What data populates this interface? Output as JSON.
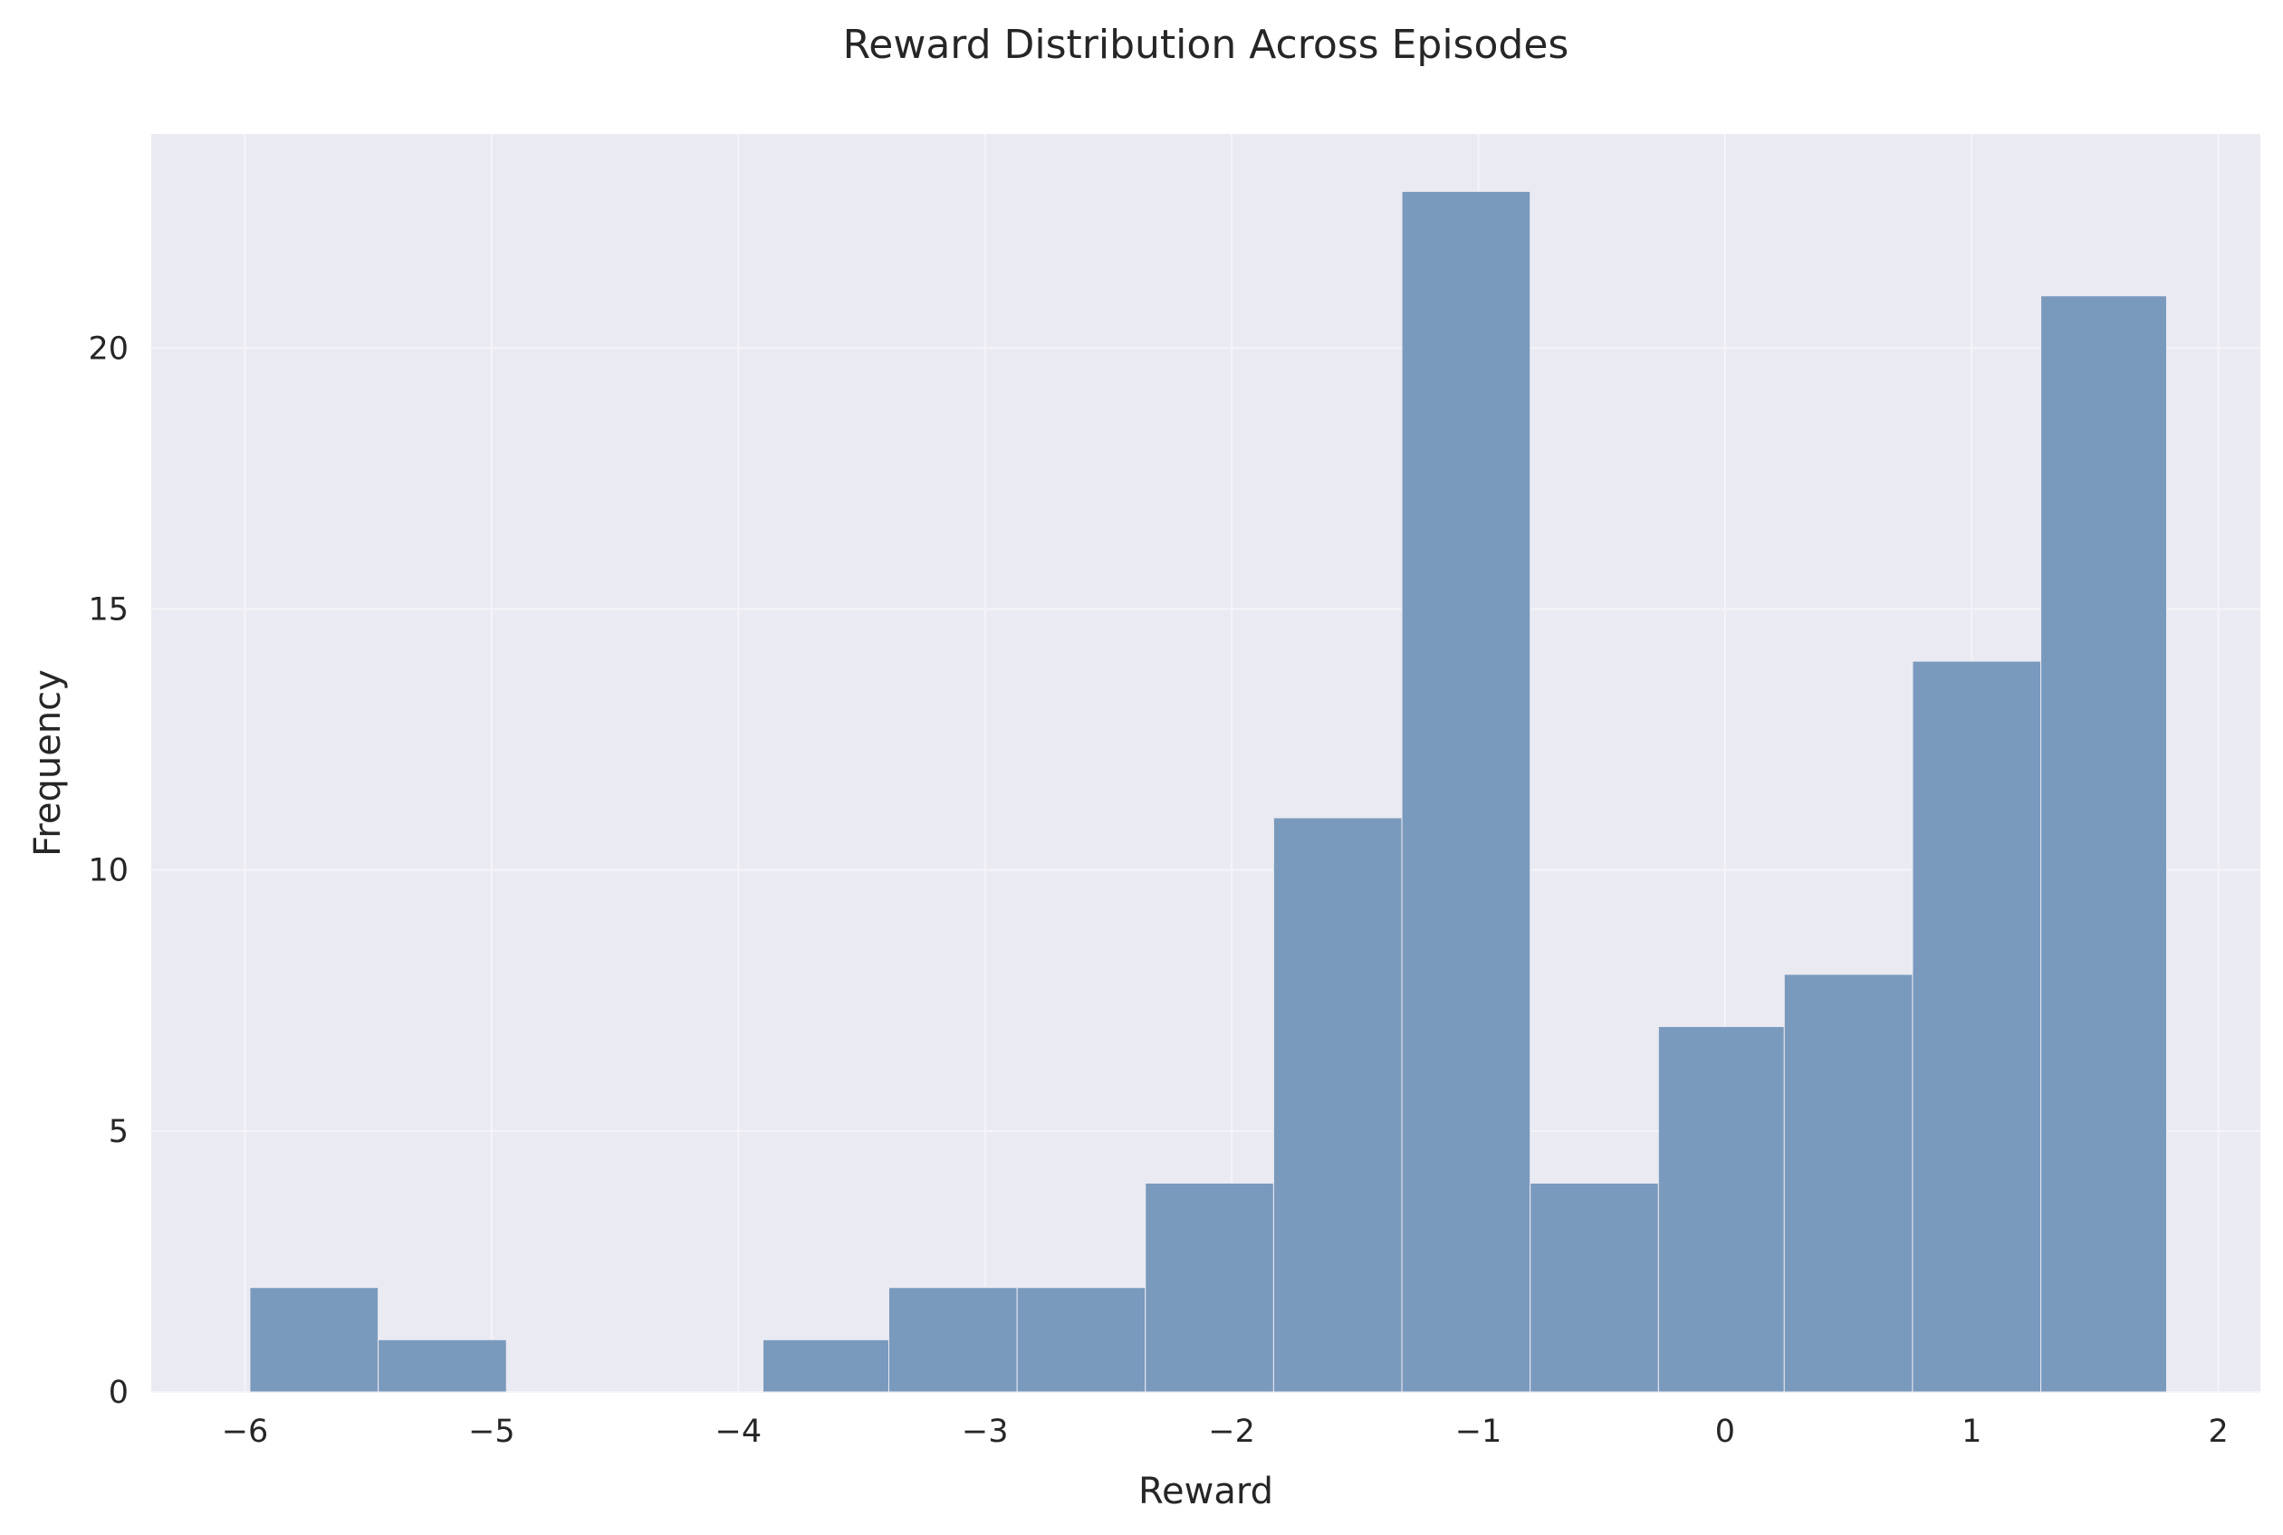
{
  "chart_data": {
    "type": "bar",
    "title": "Reward Distribution Across Episodes",
    "xlabel": "Reward",
    "ylabel": "Frequency",
    "xlim": [
      -6.38,
      2.17
    ],
    "ylim": [
      0,
      24.1
    ],
    "x_ticks": [
      {
        "value": -6,
        "label": "−6"
      },
      {
        "value": -5,
        "label": "−5"
      },
      {
        "value": -4,
        "label": "−4"
      },
      {
        "value": -3,
        "label": "−3"
      },
      {
        "value": -2,
        "label": "−2"
      },
      {
        "value": -1,
        "label": "−1"
      },
      {
        "value": 0,
        "label": "0"
      },
      {
        "value": 1,
        "label": "1"
      },
      {
        "value": 2,
        "label": "2"
      }
    ],
    "y_ticks": [
      {
        "value": 0,
        "label": "0"
      },
      {
        "value": 5,
        "label": "5"
      },
      {
        "value": 10,
        "label": "10"
      },
      {
        "value": 15,
        "label": "15"
      },
      {
        "value": 20,
        "label": "20"
      }
    ],
    "bin_edges": [
      -5.98,
      -5.46,
      -4.94,
      -4.42,
      -3.9,
      -3.39,
      -2.87,
      -2.35,
      -1.83,
      -1.31,
      -0.79,
      -0.27,
      0.24,
      0.76,
      1.28,
      1.79
    ],
    "values": [
      2,
      1,
      0,
      0,
      1,
      2,
      2,
      4,
      11,
      23,
      4,
      7,
      8,
      14,
      21
    ],
    "grid": true,
    "legend": "none",
    "colors": {
      "bar": "#7a9abd",
      "bar_edge": "#eaeaf2",
      "plot_bg": "#eaeaf2",
      "grid": "#f4f4f8",
      "text": "#262626"
    }
  }
}
